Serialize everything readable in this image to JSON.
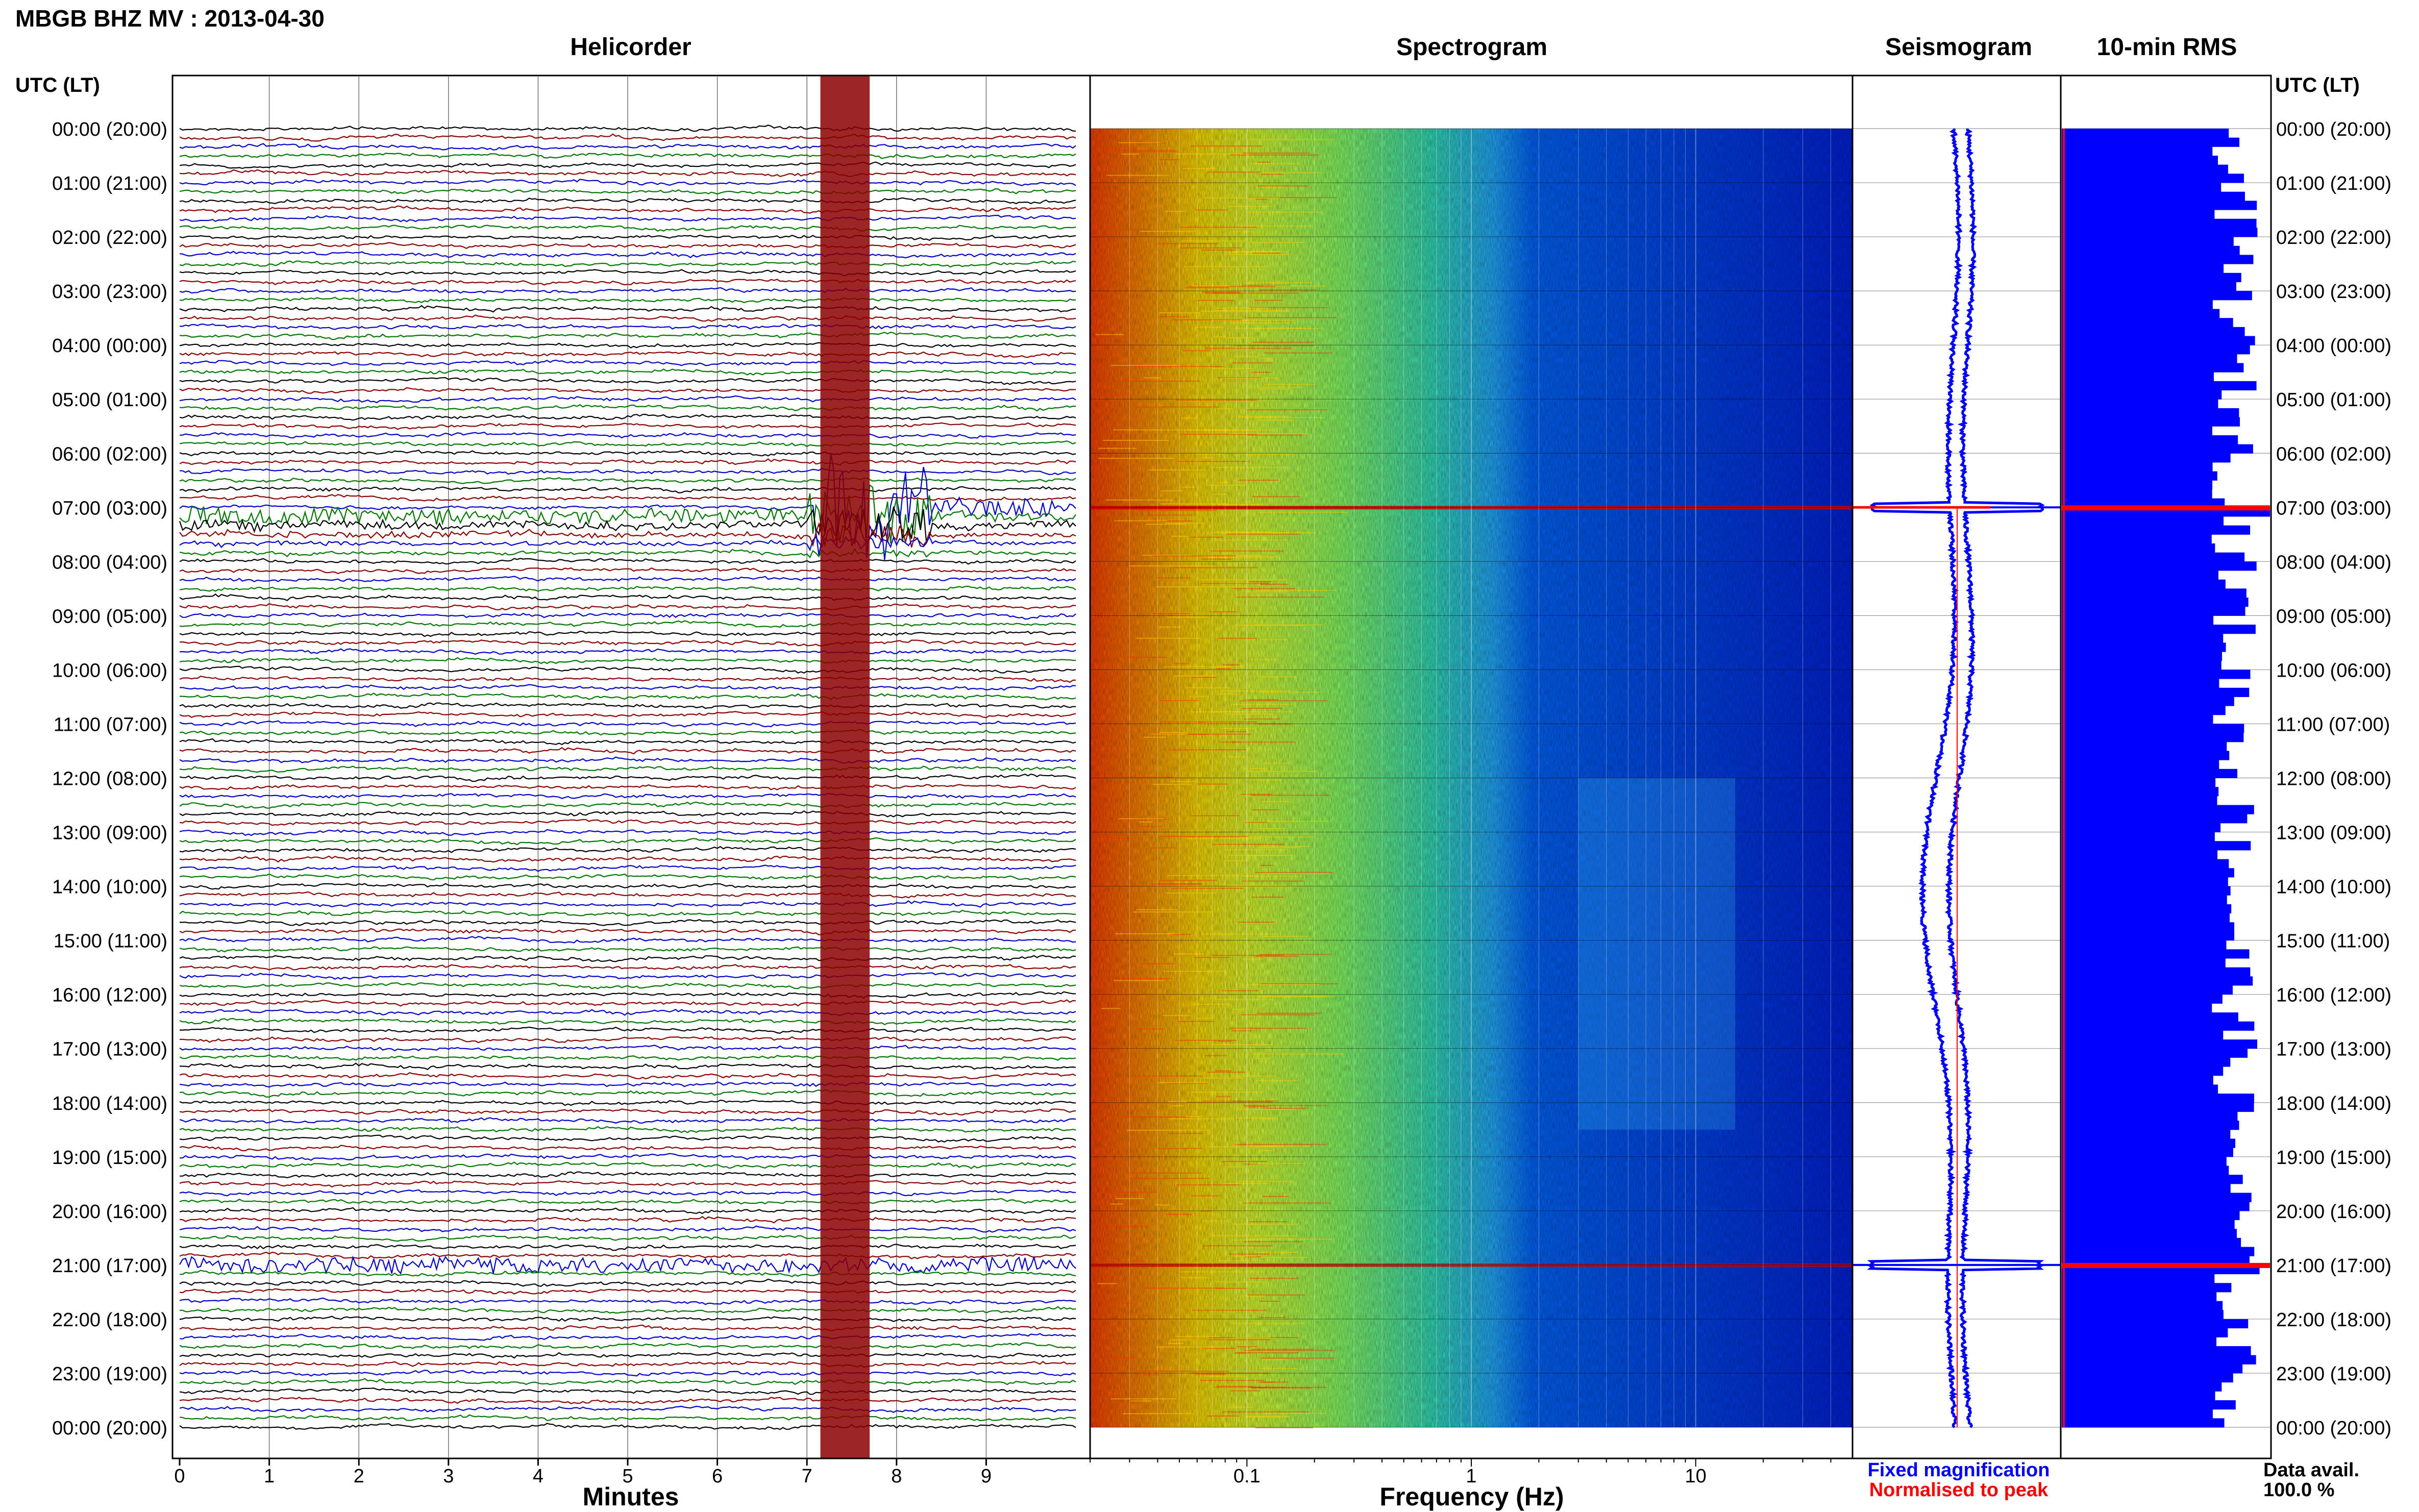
{
  "title": "MBGB BHZ MV : 2013-04-30",
  "utc_header": "UTC (LT)",
  "hour_labels": [
    "00:00 (20:00)",
    "01:00 (21:00)",
    "02:00 (22:00)",
    "03:00 (23:00)",
    "04:00 (00:00)",
    "05:00 (01:00)",
    "06:00 (02:00)",
    "07:00 (03:00)",
    "08:00 (04:00)",
    "09:00 (05:00)",
    "10:00 (06:00)",
    "11:00 (07:00)",
    "12:00 (08:00)",
    "13:00 (09:00)",
    "14:00 (10:00)",
    "15:00 (11:00)",
    "16:00 (12:00)",
    "17:00 (13:00)",
    "18:00 (14:00)",
    "19:00 (15:00)",
    "20:00 (16:00)",
    "21:00 (17:00)",
    "22:00 (18:00)",
    "23:00 (19:00)",
    "00:00 (20:00)"
  ],
  "legend": {
    "fixed": "Fixed magnification",
    "normalised": "Normalised to peak",
    "data_avail_label": "Data avail.",
    "data_avail_value": "100.0 %"
  },
  "colors": {
    "helicorder_traces": [
      "#000000",
      "#8b0000",
      "#0000cc",
      "#007700"
    ],
    "fixed": "#0000ff",
    "normalised": "#ff0000"
  },
  "chart_data": [
    {
      "type": "line",
      "title": "Helicorder",
      "xlabel": "Minutes",
      "xlim": [
        0,
        10
      ],
      "xticks": [
        "0",
        "1",
        "2",
        "3",
        "4",
        "5",
        "6",
        "7",
        "8",
        "9"
      ],
      "trace_minutes": 10,
      "hours_range": [
        0,
        24
      ],
      "events": [
        {
          "start_hour": 7.0,
          "start_minute": 7.1,
          "description_level": "high"
        },
        {
          "start_hour": 21.0,
          "start_minute": 0.0,
          "description_level": "moderate"
        }
      ]
    },
    {
      "type": "heatmap",
      "title": "Spectrogram",
      "xlabel": "Frequency (Hz)",
      "xscale": "log",
      "xlim": [
        0.02,
        50
      ],
      "xticks": [
        "0.1",
        "1",
        "10"
      ],
      "hours_range": [
        0,
        24
      ],
      "colormap": [
        "#ff4000",
        "#ff9900",
        "#ffee00",
        "#99ff33",
        "#33ddaa",
        "#22aaff",
        "#0055ff",
        "#0022dd"
      ]
    },
    {
      "type": "line",
      "title": "Seismogram",
      "hours_range": [
        0,
        24
      ],
      "events": [
        {
          "hour": 7.0
        },
        {
          "hour": 21.0
        }
      ]
    },
    {
      "type": "bar",
      "title": "10-min RMS",
      "hours_range": [
        0,
        24
      ],
      "bins_per_hour": 6,
      "peaks": [
        {
          "hour": 7.0,
          "level": 1.0
        },
        {
          "hour": 21.0,
          "level": 0.95
        }
      ]
    }
  ]
}
